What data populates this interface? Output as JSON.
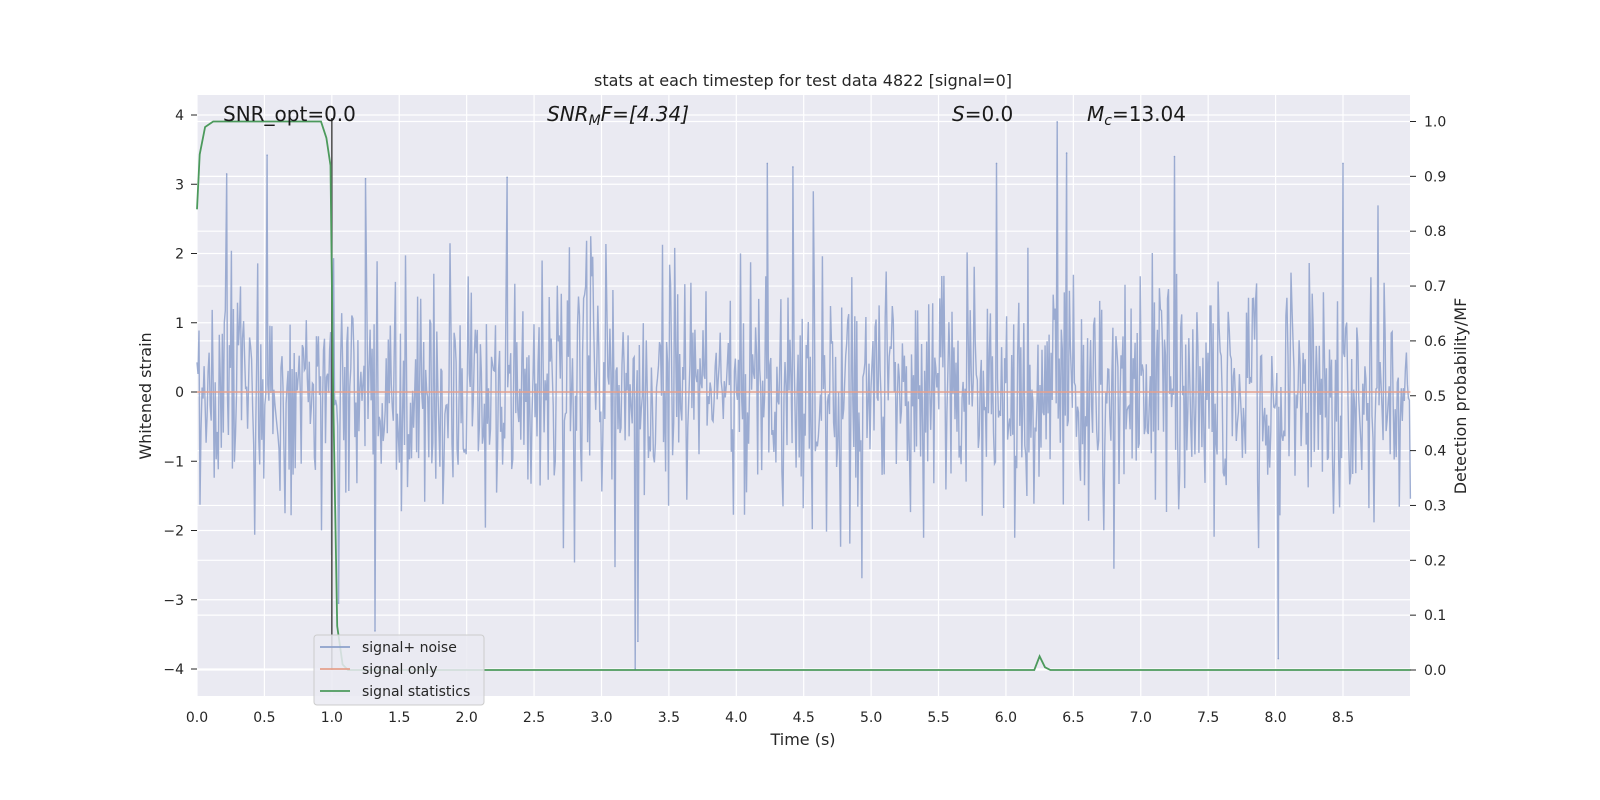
{
  "chart_data": {
    "type": "line",
    "title": "stats at each timestep for test data 4822 [signal=0]",
    "xlabel": "Time (s)",
    "ylabel": "Whitened strain",
    "ylabel_right": "Detection probability/MF",
    "xlim": [
      0.0,
      9.0
    ],
    "ylim": [
      -4.4,
      4.3
    ],
    "ylim_right": [
      -0.05,
      1.04
    ],
    "x_ticks": [
      0.0,
      0.5,
      1.0,
      1.5,
      2.0,
      2.5,
      3.0,
      3.5,
      4.0,
      4.5,
      5.0,
      5.5,
      6.0,
      6.5,
      7.0,
      7.5,
      8.0,
      8.5
    ],
    "x_tick_labels": [
      "0.0",
      "0.5",
      "1.0",
      "1.5",
      "2.0",
      "2.5",
      "3.0",
      "3.5",
      "4.0",
      "4.5",
      "5.0",
      "5.5",
      "6.0",
      "6.5",
      "7.0",
      "7.5",
      "8.0",
      "8.5"
    ],
    "y_ticks": [
      4,
      3,
      2,
      1,
      0,
      -1,
      -2,
      -3,
      -4
    ],
    "y_tick_labels": [
      "4",
      "3",
      "2",
      "1",
      "0",
      "−1",
      "−2",
      "−3",
      "−4"
    ],
    "y_right_ticks": [
      1.0,
      0.9,
      0.8,
      0.7,
      0.6,
      0.5,
      0.4,
      0.3,
      0.2,
      0.1,
      0.0
    ],
    "y_right_tick_labels": [
      "1.0",
      "0.9",
      "0.8",
      "0.7",
      "0.6",
      "0.5",
      "0.4",
      "0.3",
      "0.2",
      "0.1",
      "0.0"
    ],
    "grid": true,
    "legend_position": "lower-left",
    "annotations": {
      "snr_opt": "SNR_opt=0.0",
      "snr_mf_main": "SNR",
      "snr_mf_sub": "M",
      "snr_mf_rest": "F=[4.34]",
      "s_main": "S",
      "s_rest": "=0.0",
      "mc_main": "M",
      "mc_sub": "c",
      "mc_rest": "=13.04"
    },
    "vertical_line_x": 1.0,
    "series": [
      {
        "name": "signal+ noise",
        "color": "#8da0cb",
        "axis": "left",
        "style": "dense noise",
        "noise_sigma": 1.0,
        "sample_count": 1200,
        "peaks": [
          {
            "x": 0.52,
            "y": 3.42
          },
          {
            "x": 0.22,
            "y": 3.15
          },
          {
            "x": 1.25,
            "y": 3.08
          },
          {
            "x": 2.3,
            "y": 3.1
          },
          {
            "x": 4.23,
            "y": 3.3
          },
          {
            "x": 4.42,
            "y": 3.25
          },
          {
            "x": 5.93,
            "y": 3.3
          },
          {
            "x": 6.38,
            "y": 3.9
          },
          {
            "x": 6.45,
            "y": 3.45
          },
          {
            "x": 7.25,
            "y": 3.4
          },
          {
            "x": 8.5,
            "y": 3.3
          },
          {
            "x": 3.25,
            "y": -4.0
          },
          {
            "x": 3.27,
            "y": -3.6
          },
          {
            "x": 8.02,
            "y": -3.85
          },
          {
            "x": 1.05,
            "y": -3.05
          },
          {
            "x": 1.32,
            "y": -3.45
          }
        ]
      },
      {
        "name": "signal only",
        "color": "#e5a08c",
        "axis": "left",
        "x": [
          0.0,
          9.0
        ],
        "y": [
          0.0,
          0.0
        ]
      },
      {
        "name": "signal statistics",
        "color": "#4c9a5c",
        "axis": "right",
        "x": [
          0.0,
          0.02,
          0.06,
          0.12,
          0.2,
          0.4,
          0.6,
          0.8,
          0.92,
          0.96,
          0.99,
          1.01,
          1.04,
          1.08,
          1.12,
          1.5,
          2.0,
          3.0,
          4.0,
          5.0,
          6.0,
          6.17,
          6.21,
          6.25,
          6.29,
          6.33,
          6.5,
          7.0,
          8.0,
          9.0
        ],
        "y": [
          0.84,
          0.94,
          0.99,
          1.0,
          1.0,
          1.0,
          1.0,
          1.0,
          1.0,
          0.97,
          0.92,
          0.5,
          0.08,
          0.01,
          0.0,
          0.0,
          0.0,
          0.0,
          0.0,
          0.0,
          0.0,
          0.0,
          0.0,
          0.025,
          0.005,
          0.0,
          0.0,
          0.0,
          0.0,
          0.0
        ]
      }
    ]
  }
}
